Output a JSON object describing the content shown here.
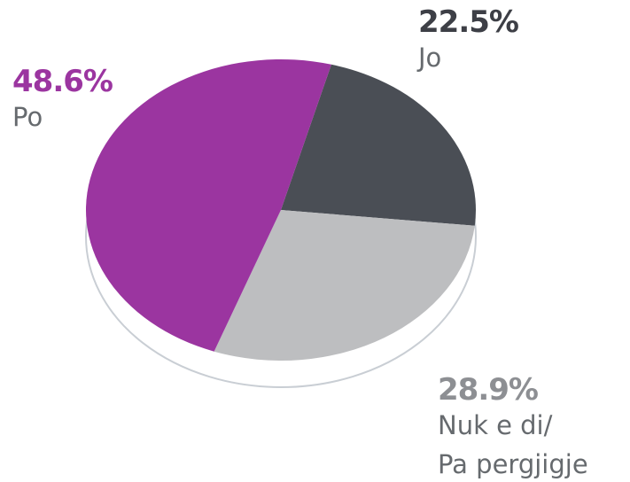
{
  "chart_data": {
    "type": "pie",
    "categories": [
      "Jo",
      "Nuk e di/\nPa pergjigje",
      "Po"
    ],
    "values": [
      22.5,
      28.9,
      48.6
    ],
    "value_labels": [
      "22.5%",
      "28.9%",
      "48.6%"
    ],
    "colors": [
      "#4a4e55",
      "#bdbec0",
      "#9b35a0"
    ],
    "label_colors": [
      "#3d3f46",
      "#8d8f93",
      "#9b35a0"
    ]
  }
}
